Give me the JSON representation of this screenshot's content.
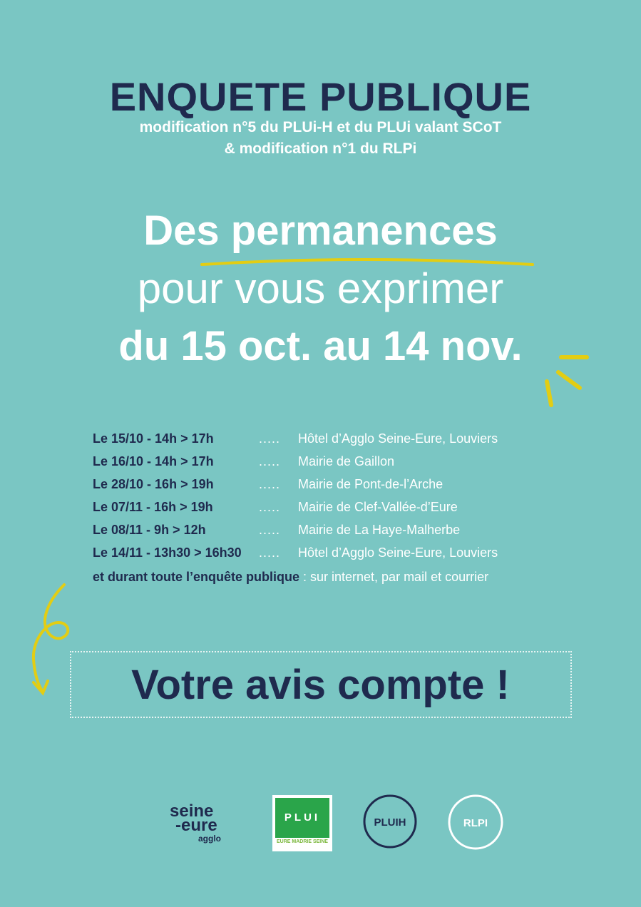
{
  "header": {
    "title": "ENQUETE PUBLIQUE",
    "subtitle_line1": "modification n°5 du PLUi-H et du PLUi valant SCoT",
    "subtitle_line2": "& modification n°1 du RLPi"
  },
  "headline": {
    "line1_a": "Des ",
    "line1_b": "permanences",
    "line2": "pour vous exprimer",
    "line3": "du 15 oct. au 14 nov."
  },
  "schedule": [
    {
      "date": "Le 15/10 - 14h > 17h",
      "dots": ".....",
      "place": "Hôtel d’Agglo Seine-Eure, Louviers"
    },
    {
      "date": "Le 16/10 - 14h > 17h",
      "dots": ".....",
      "place": "Mairie de Gaillon"
    },
    {
      "date": "Le 28/10 - 16h > 19h",
      "dots": ".....",
      "place": "Mairie de Pont-de-l’Arche"
    },
    {
      "date": "Le 07/11 - 16h > 19h",
      "dots": ".....",
      "place": "Mairie de Clef-Vallée-d’Eure"
    },
    {
      "date": "Le 08/11 - 9h > 12h",
      "dots": ".....",
      "place": "Mairie de La Haye-Malherbe"
    },
    {
      "date": "Le 14/11 - 13h30 > 16h30",
      "dots": ".....",
      "place": "Hôtel d’Agglo Seine-Eure, Louviers"
    }
  ],
  "note": {
    "bold": "et durant toute l’enquête publique",
    "rest": " : sur internet, par mail et courrier"
  },
  "cta": "Votre avis compte !",
  "logos": {
    "seine_eure": "seine-eure agglo",
    "plui": "PLUI EURE MADRIE SEINE",
    "pluih": "PLUIH",
    "rlpi": "RLPI"
  },
  "colors": {
    "background": "#7ac6c3",
    "navy": "#1f2a4e",
    "accent": "#e3cd13"
  }
}
